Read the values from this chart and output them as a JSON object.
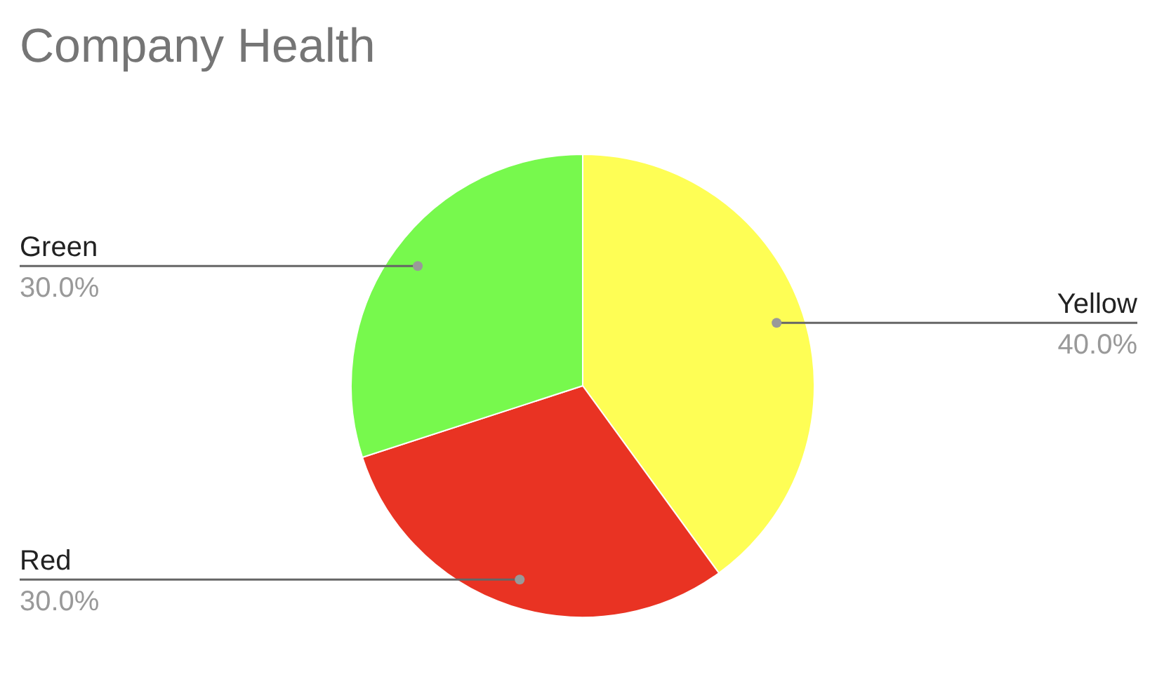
{
  "chart_data": {
    "type": "pie",
    "title": "Company Health",
    "categories": [
      "Yellow",
      "Red",
      "Green"
    ],
    "values": [
      40,
      30,
      30
    ],
    "colors": [
      "#fefe55",
      "#e93323",
      "#77f94d"
    ],
    "value_labels": [
      "40.0%",
      "30.0%",
      "30.0%"
    ]
  }
}
